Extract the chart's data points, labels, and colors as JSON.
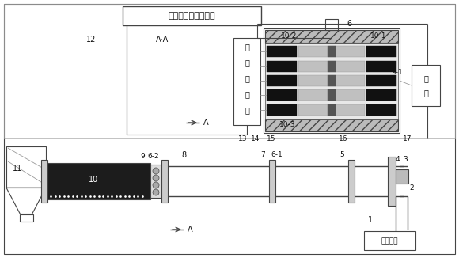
{
  "bg_color": "#ffffff",
  "lc": "#444444",
  "dc": "#111111",
  "gc": "#999999",
  "lgc": "#cccccc",
  "title_text": "数据采集及控制系统",
  "sigamp_chars": [
    "信",
    "号",
    "放",
    "大",
    "器"
  ],
  "power_chars": [
    "电",
    "源"
  ],
  "compress_text": "压缩气瓶"
}
